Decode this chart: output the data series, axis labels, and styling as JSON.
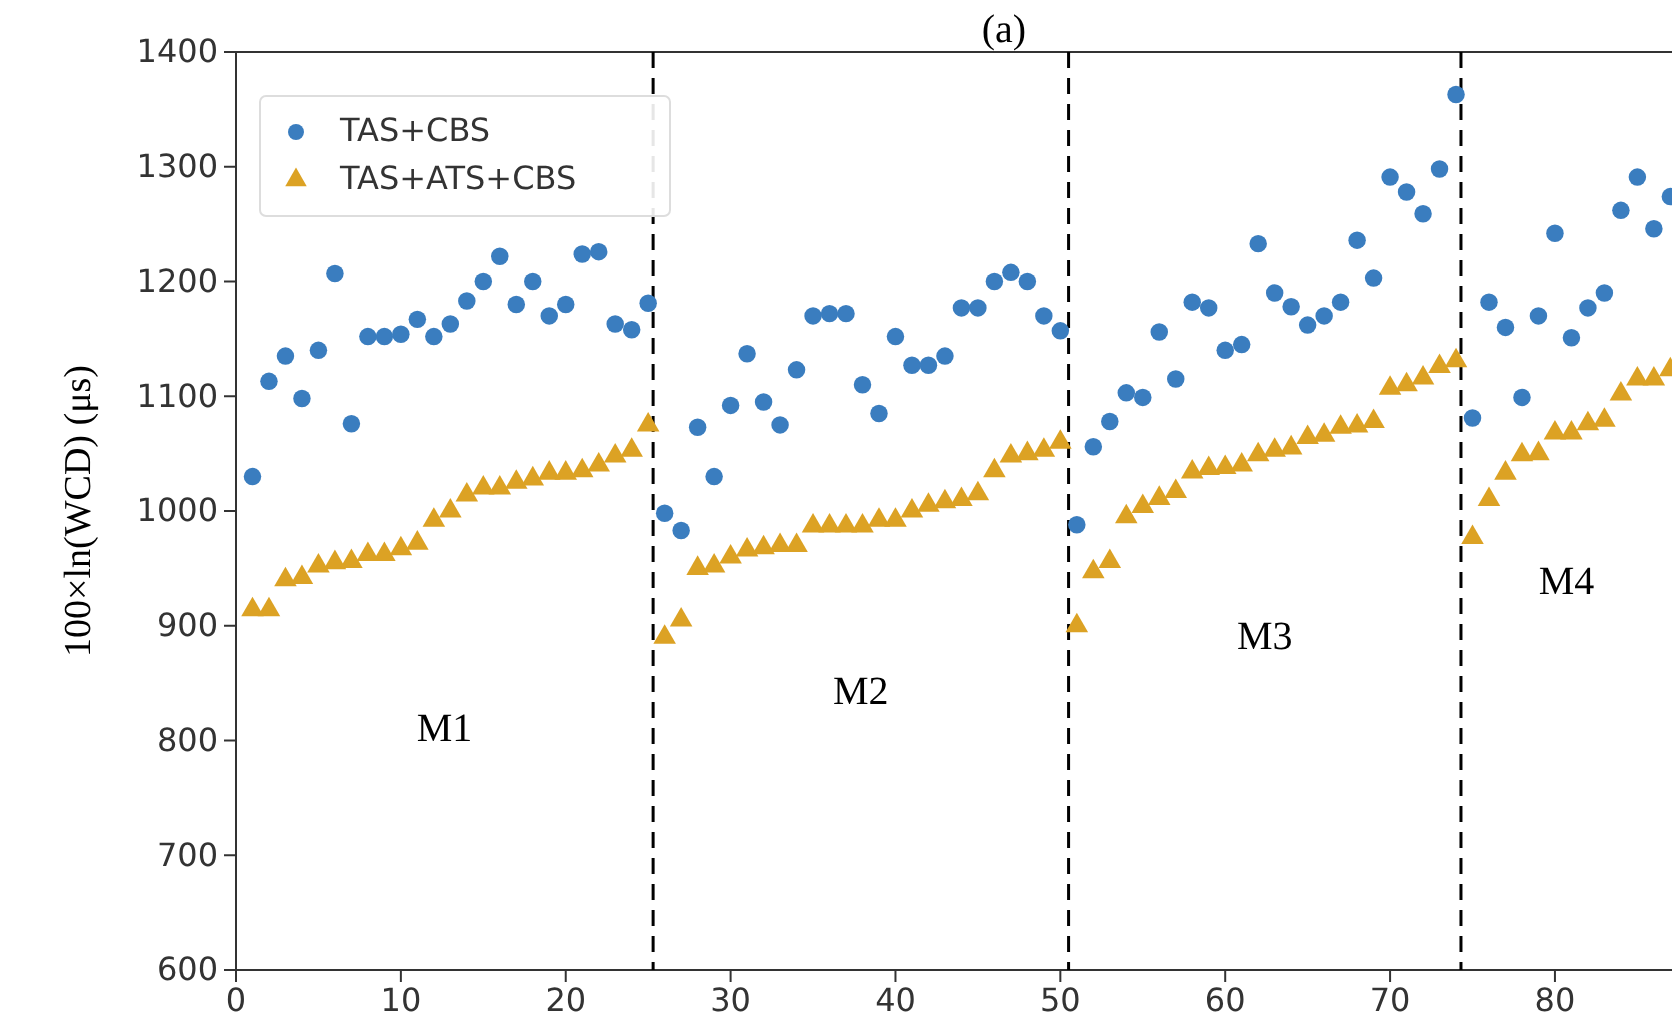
{
  "chart_data": {
    "type": "scatter",
    "title": "(a)",
    "ylabel": "100×ln(WCD) (μs)",
    "x": [
      1,
      2,
      3,
      4,
      5,
      6,
      7,
      8,
      9,
      10,
      11,
      12,
      13,
      14,
      15,
      16,
      17,
      18,
      19,
      20,
      21,
      22,
      23,
      24,
      25,
      26,
      27,
      28,
      29,
      30,
      31,
      32,
      33,
      34,
      35,
      36,
      37,
      38,
      39,
      40,
      41,
      42,
      43,
      44,
      45,
      46,
      47,
      48,
      49,
      50,
      51,
      52,
      53,
      54,
      55,
      56,
      57,
      58,
      59,
      60,
      61,
      62,
      63,
      64,
      65,
      66,
      67,
      68,
      69,
      70,
      71,
      72,
      73,
      74,
      75,
      76,
      77,
      78,
      79,
      80,
      81,
      82,
      83,
      84,
      85,
      86,
      87
    ],
    "series": [
      {
        "name": "TAS+CBS",
        "color": "#3a7dbf",
        "marker": "circle",
        "values": [
          1030,
          1113,
          1135,
          1098,
          1140,
          1207,
          1076,
          1152,
          1152,
          1154,
          1167,
          1152,
          1163,
          1183,
          1200,
          1222,
          1180,
          1200,
          1170,
          1180,
          1224,
          1226,
          1163,
          1158,
          1181,
          998,
          983,
          1073,
          1030,
          1092,
          1137,
          1095,
          1075,
          1123,
          1170,
          1172,
          1172,
          1110,
          1085,
          1152,
          1127,
          1127,
          1135,
          1177,
          1177,
          1200,
          1208,
          1200,
          1170,
          1157,
          988,
          1056,
          1078,
          1103,
          1099,
          1156,
          1115,
          1182,
          1177,
          1140,
          1145,
          1233,
          1190,
          1178,
          1162,
          1170,
          1182,
          1236,
          1203,
          1291,
          1278,
          1259,
          1298,
          1363,
          1081,
          1182,
          1160,
          1099,
          1170,
          1242,
          1151,
          1177,
          1190,
          1262,
          1291,
          1246,
          1274
        ]
      },
      {
        "name": "TAS+ATS+CBS",
        "color": "#dca224",
        "marker": "triangle",
        "values": [
          914,
          914,
          940,
          942,
          952,
          955,
          956,
          962,
          962,
          967,
          972,
          992,
          1000,
          1014,
          1020,
          1020,
          1025,
          1028,
          1033,
          1033,
          1035,
          1040,
          1048,
          1053,
          1075,
          890,
          905,
          950,
          952,
          960,
          966,
          968,
          970,
          970,
          987,
          987,
          987,
          987,
          992,
          992,
          1000,
          1005,
          1008,
          1010,
          1015,
          1035,
          1048,
          1050,
          1053,
          1060,
          900,
          947,
          956,
          995,
          1004,
          1011,
          1017,
          1034,
          1037,
          1038,
          1040,
          1049,
          1053,
          1055,
          1064,
          1066,
          1073,
          1074,
          1078,
          1107,
          1110,
          1116,
          1126,
          1131,
          977,
          1010,
          1033,
          1049,
          1050,
          1068,
          1068,
          1076,
          1079,
          1102,
          1115,
          1115,
          1123
        ]
      }
    ],
    "xlim": [
      0,
      87.1
    ],
    "xticks": [
      0,
      10,
      20,
      30,
      40,
      50,
      60,
      70,
      80
    ],
    "ylim": [
      600,
      1400
    ],
    "yticks": [
      600,
      700,
      800,
      900,
      1000,
      1100,
      1200,
      1300,
      1400
    ],
    "legend": "top left",
    "grid": false,
    "ref_lines": [
      {
        "axis": "x",
        "value": 25.3,
        "label": null,
        "color": "#000000",
        "line_style": "dashed"
      },
      {
        "axis": "x",
        "value": 50.5,
        "label": null,
        "color": "#000000",
        "line_style": "dashed"
      },
      {
        "axis": "x",
        "value": 74.3,
        "label": null,
        "color": "#000000",
        "line_style": "dashed"
      }
    ],
    "annotations": [
      "M1",
      "M2",
      "M3",
      "M4"
    ]
  }
}
